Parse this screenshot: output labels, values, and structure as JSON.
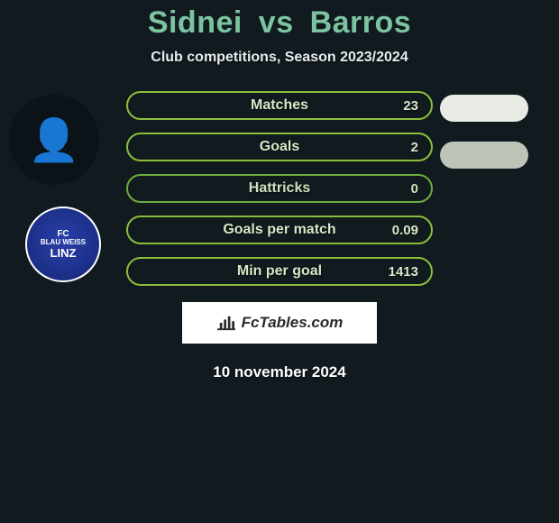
{
  "header": {
    "player1": "Sidnei",
    "vs": "vs",
    "player2": "Barros",
    "title_color": "#7cc4a0",
    "subtitle": "Club competitions, Season 2023/2024"
  },
  "avatars": {
    "player_emoji": "👤",
    "club_line1": "FC",
    "club_line2": "BLAU WEISS",
    "club_line3": "LINZ"
  },
  "stats": [
    {
      "label": "Matches",
      "value": "23",
      "border": "#8bbf3a",
      "text": "#d9e6c7"
    },
    {
      "label": "Goals",
      "value": "2",
      "border": "#8bbf3a",
      "text": "#d9e6c7"
    },
    {
      "label": "Hattricks",
      "value": "0",
      "border": "#6fae3d",
      "text": "#cfe0bd"
    },
    {
      "label": "Goals per match",
      "value": "0.09",
      "border": "#8bbf3a",
      "text": "#d9e6c7"
    },
    {
      "label": "Min per goal",
      "value": "1413",
      "border": "#8bbf3a",
      "text": "#d9e6c7"
    }
  ],
  "chips": [
    {
      "color": "#e9ece5"
    },
    {
      "color": "#bfc4b9"
    }
  ],
  "footer": {
    "brand_prefix": "Fc",
    "brand_suffix": "Tables.com",
    "date": "10 november 2024"
  }
}
